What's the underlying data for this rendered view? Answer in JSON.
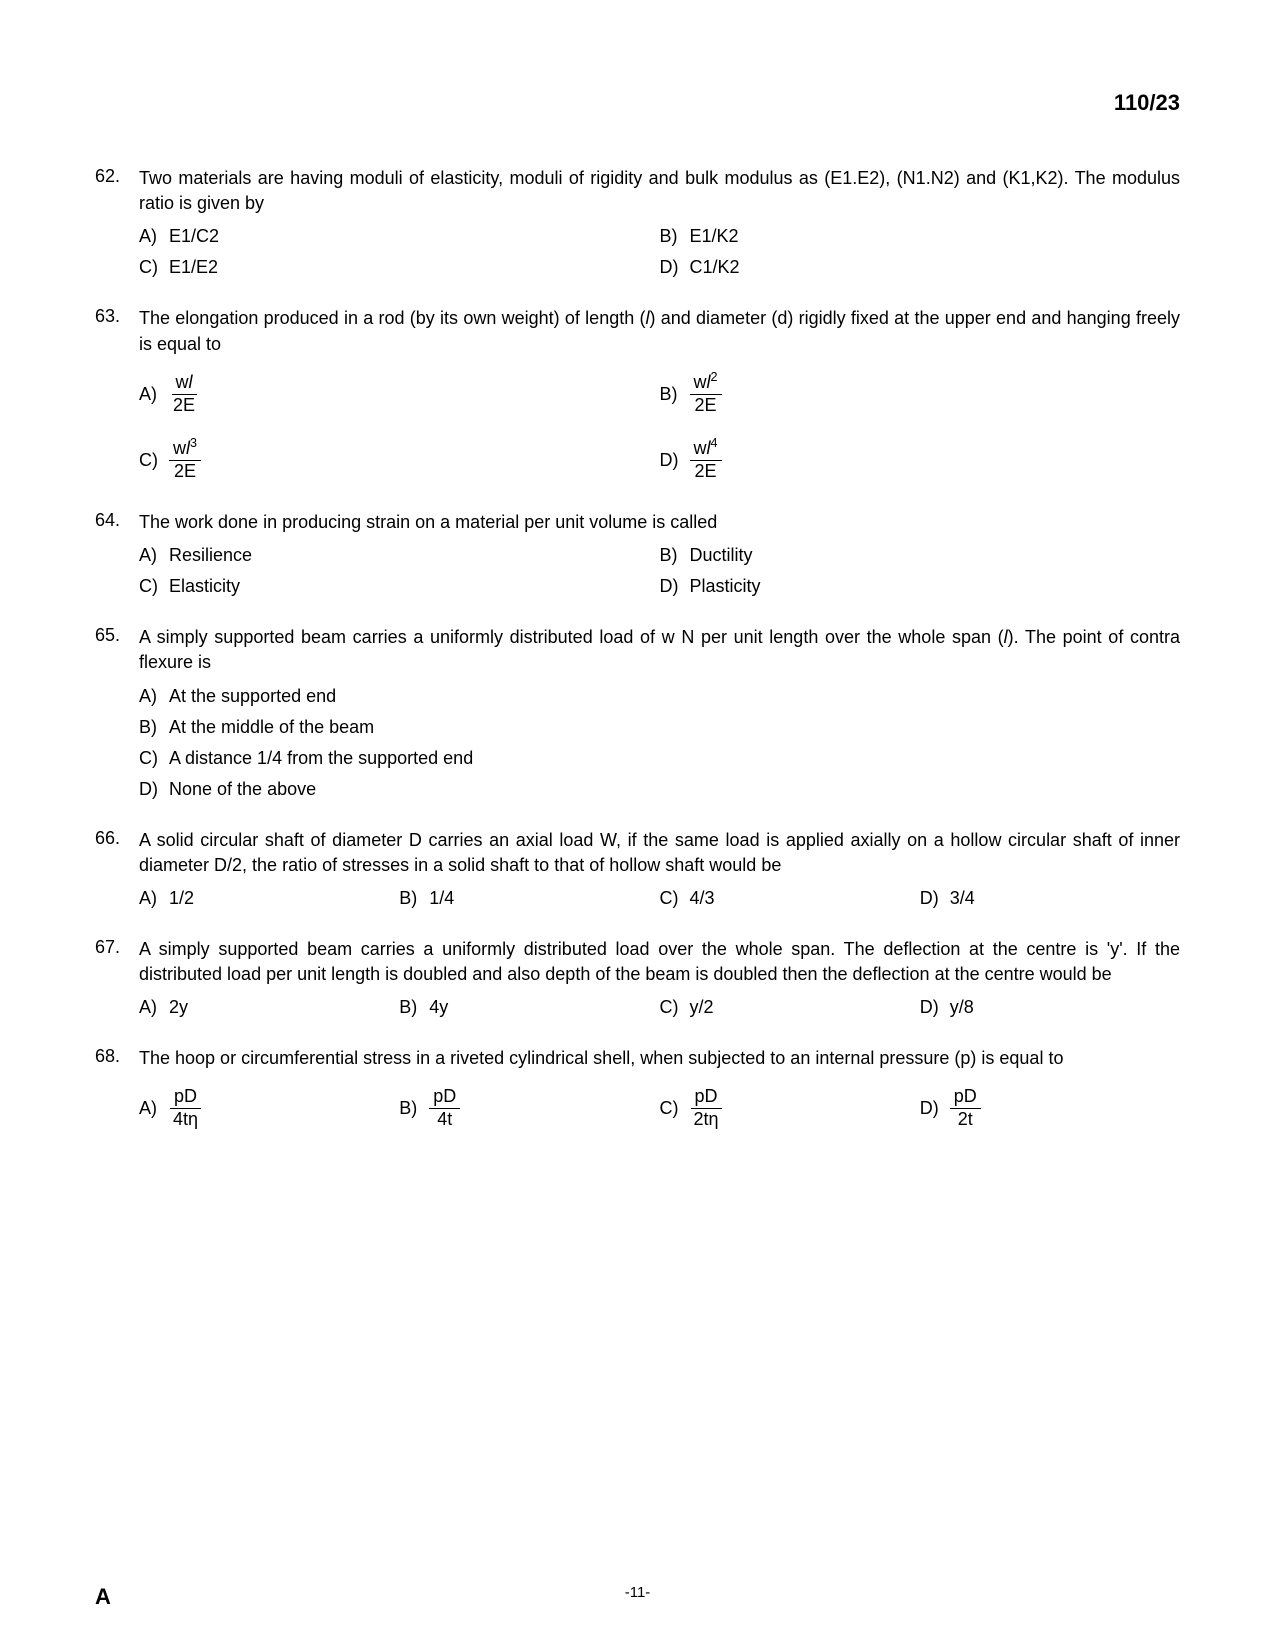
{
  "header_code": "110/23",
  "footer": {
    "left": "A",
    "center": "-11-"
  },
  "q62": {
    "num": "62.",
    "text": "Two materials are having moduli of elasticity, moduli of rigidity and bulk modulus as (E1.E2), (N1.N2) and (K1,K2). The modulus ratio is given by",
    "A": "E1/C2",
    "B": "E1/K2",
    "C": "E1/E2",
    "D": "C1/K2"
  },
  "q63": {
    "num": "63.",
    "text_1": "The elongation produced in a rod (by its own weight) of length (",
    "text_l": "l",
    "text_2": ") and diameter (d) rigidly fixed at the upper end and hanging freely is equal to",
    "A_num": "w",
    "A_num_l": "l",
    "A_num_exp": "",
    "A_den": "2E",
    "B_num": "w",
    "B_num_l": "l",
    "B_num_exp": "2",
    "B_den": "2E",
    "C_num": "w",
    "C_num_l": "l",
    "C_num_exp": "3",
    "C_den": "2E",
    "D_num": "w",
    "D_num_l": "l",
    "D_num_exp": "4",
    "D_den": "2E"
  },
  "q64": {
    "num": "64.",
    "text": "The work done in producing strain on a material per unit volume is called",
    "A": "Resilience",
    "B": "Ductility",
    "C": "Elasticity",
    "D": "Plasticity"
  },
  "q65": {
    "num": "65.",
    "text_1": "A simply supported beam carries a uniformly distributed load of w N per unit length over the whole span (",
    "text_l": "l",
    "text_2": "). The point of contra flexure is",
    "A": "At the supported end",
    "B": "At the middle of the beam",
    "C": "A distance 1/4 from the supported end",
    "D": "None of the above"
  },
  "q66": {
    "num": "66.",
    "text": "A solid circular shaft of diameter D carries an axial load W, if the same load is applied axially on a hollow circular shaft of inner diameter D/2, the ratio of stresses in a solid shaft to that of hollow shaft would be",
    "A": "1/2",
    "B": "1/4",
    "C": "4/3",
    "D": "3/4"
  },
  "q67": {
    "num": "67.",
    "text": "A simply supported beam carries a uniformly distributed load over the whole span. The deflection at the centre is 'y'. If the distributed load per unit length is doubled and also depth of the beam is doubled then the deflection at the centre would be",
    "A": "2y",
    "B": "4y",
    "C": "y/2",
    "D": "y/8"
  },
  "q68": {
    "num": "68.",
    "text": "The hoop or circumferential stress in a riveted cylindrical shell, when subjected to an internal pressure (p) is equal to",
    "A_num": "pD",
    "A_den": "4tη",
    "B_num": "pD",
    "B_den": "4t",
    "C_num": "pD",
    "C_den": "2tη",
    "D_num": "pD",
    "D_den": "2t"
  },
  "letters": {
    "A": "A)",
    "B": "B)",
    "C": "C)",
    "D": "D)"
  }
}
